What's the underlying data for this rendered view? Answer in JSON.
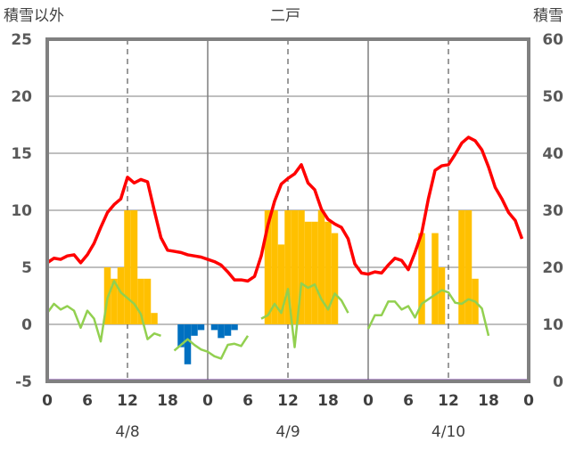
{
  "chart_data": {
    "type": "bar+line",
    "title": "二戸",
    "left_axis_label": "積雪以外",
    "right_axis_label": "積雪",
    "y_left": {
      "min": -5,
      "max": 25,
      "ticks": [
        25,
        20,
        15,
        10,
        5,
        0,
        -5
      ]
    },
    "y_right": {
      "min": 0,
      "max": 60,
      "ticks": [
        60,
        50,
        40,
        30,
        20,
        10,
        0
      ]
    },
    "x_ticks": [
      "0",
      "6",
      "12",
      "18",
      "0",
      "6",
      "12",
      "18",
      "0",
      "6",
      "12",
      "18",
      "0"
    ],
    "dates": [
      "4/8",
      "4/9",
      "4/10"
    ],
    "grid": true,
    "colors": {
      "temperature": "#ff0000",
      "precip_positive": "#ffc000",
      "precip_negative": "#0070c0",
      "third_line": "#92d050",
      "snow_depth": "#7030a0",
      "frame": "#808080"
    },
    "bars": [
      {
        "h": 9,
        "v": 5
      },
      {
        "h": 10,
        "v": 4
      },
      {
        "h": 11,
        "v": 5
      },
      {
        "h": 12,
        "v": 10
      },
      {
        "h": 13,
        "v": 10
      },
      {
        "h": 14,
        "v": 4
      },
      {
        "h": 15,
        "v": 4
      },
      {
        "h": 16,
        "v": 1
      },
      {
        "h": 20,
        "v": -2
      },
      {
        "h": 21,
        "v": -3.5
      },
      {
        "h": 22,
        "v": -1
      },
      {
        "h": 23,
        "v": -0.5
      },
      {
        "h": 25,
        "v": -0.5
      },
      {
        "h": 26,
        "v": -1.2
      },
      {
        "h": 27,
        "v": -1
      },
      {
        "h": 28,
        "v": -0.5
      },
      {
        "h": 33,
        "v": 10
      },
      {
        "h": 34,
        "v": 10
      },
      {
        "h": 35,
        "v": 7
      },
      {
        "h": 36,
        "v": 10
      },
      {
        "h": 37,
        "v": 10
      },
      {
        "h": 38,
        "v": 10
      },
      {
        "h": 39,
        "v": 9
      },
      {
        "h": 40,
        "v": 9
      },
      {
        "h": 41,
        "v": 10
      },
      {
        "h": 42,
        "v": 9
      },
      {
        "h": 43,
        "v": 8
      },
      {
        "h": 56,
        "v": 8
      },
      {
        "h": 58,
        "v": 8
      },
      {
        "h": 59,
        "v": 5
      },
      {
        "h": 62,
        "v": 10
      },
      {
        "h": 63,
        "v": 10
      },
      {
        "h": 64,
        "v": 4
      }
    ],
    "temperature": [
      [
        0,
        5.4
      ],
      [
        1,
        5.8
      ],
      [
        2,
        5.7
      ],
      [
        3,
        6.0
      ],
      [
        4,
        6.1
      ],
      [
        5,
        5.4
      ],
      [
        6,
        6.1
      ],
      [
        7,
        7.1
      ],
      [
        8,
        8.5
      ],
      [
        9,
        9.8
      ],
      [
        10,
        10.5
      ],
      [
        11,
        11.0
      ],
      [
        12,
        12.9
      ],
      [
        13,
        12.4
      ],
      [
        14,
        12.7
      ],
      [
        15,
        12.5
      ],
      [
        16,
        10.0
      ],
      [
        17,
        7.6
      ],
      [
        18,
        6.5
      ],
      [
        19,
        6.4
      ],
      [
        20,
        6.3
      ],
      [
        21,
        6.1
      ],
      [
        22,
        6.0
      ],
      [
        23,
        5.9
      ],
      [
        24,
        5.7
      ],
      [
        25,
        5.5
      ],
      [
        26,
        5.2
      ],
      [
        27,
        4.6
      ],
      [
        28,
        3.9
      ],
      [
        29,
        3.9
      ],
      [
        30,
        3.8
      ],
      [
        31,
        4.2
      ],
      [
        32,
        6.0
      ],
      [
        33,
        8.7
      ],
      [
        34,
        10.8
      ],
      [
        35,
        12.3
      ],
      [
        36,
        12.8
      ],
      [
        37,
        13.2
      ],
      [
        38,
        14.0
      ],
      [
        39,
        12.4
      ],
      [
        40,
        11.8
      ],
      [
        41,
        10.1
      ],
      [
        42,
        9.2
      ],
      [
        43,
        8.8
      ],
      [
        44,
        8.5
      ],
      [
        45,
        7.5
      ],
      [
        46,
        5.3
      ],
      [
        47,
        4.5
      ],
      [
        48,
        4.4
      ],
      [
        49,
        4.6
      ],
      [
        50,
        4.5
      ],
      [
        51,
        5.2
      ],
      [
        52,
        5.8
      ],
      [
        53,
        5.6
      ],
      [
        54,
        4.8
      ],
      [
        55,
        6.3
      ],
      [
        56,
        8.0
      ],
      [
        57,
        11.0
      ],
      [
        58,
        13.5
      ],
      [
        59,
        13.9
      ],
      [
        60,
        14.0
      ],
      [
        61,
        14.9
      ],
      [
        62,
        15.9
      ],
      [
        63,
        16.4
      ],
      [
        64,
        16.1
      ],
      [
        65,
        15.3
      ],
      [
        66,
        13.8
      ],
      [
        67,
        12.0
      ],
      [
        68,
        11.0
      ],
      [
        69,
        9.8
      ],
      [
        70,
        9.1
      ],
      [
        71,
        7.5
      ]
    ],
    "third_series": [
      [
        [
          0,
          1.0
        ],
        [
          1,
          1.8
        ],
        [
          2,
          1.3
        ],
        [
          3,
          1.6
        ],
        [
          4,
          1.2
        ],
        [
          5,
          -0.3
        ],
        [
          6,
          1.2
        ],
        [
          7,
          0.5
        ],
        [
          8,
          -1.5
        ],
        [
          9,
          2.3
        ],
        [
          10,
          3.8
        ],
        [
          11,
          2.8
        ],
        [
          12,
          2.3
        ],
        [
          13,
          1.8
        ],
        [
          14,
          0.9
        ],
        [
          15,
          -1.3
        ],
        [
          16,
          -0.8
        ],
        [
          17,
          -1.0
        ]
      ],
      [
        [
          19,
          -2.3
        ],
        [
          20,
          -1.8
        ],
        [
          21,
          -1.3
        ],
        [
          22,
          -1.8
        ],
        [
          23,
          -2.2
        ],
        [
          24,
          -2.4
        ],
        [
          25,
          -2.8
        ],
        [
          26,
          -3.0
        ],
        [
          27,
          -1.8
        ],
        [
          28,
          -1.7
        ],
        [
          29,
          -1.9
        ],
        [
          30,
          -1.0
        ]
      ],
      [
        [
          32,
          0.5
        ],
        [
          33,
          0.8
        ],
        [
          34,
          1.8
        ],
        [
          35,
          1.0
        ],
        [
          36,
          3.1
        ],
        [
          37,
          -2.0
        ],
        [
          38,
          3.6
        ],
        [
          39,
          3.2
        ],
        [
          40,
          3.5
        ],
        [
          41,
          2.2
        ],
        [
          42,
          1.3
        ],
        [
          43,
          2.7
        ],
        [
          44,
          2.1
        ],
        [
          45,
          1.0
        ]
      ],
      [
        [
          48,
          -0.4
        ],
        [
          49,
          0.8
        ],
        [
          50,
          0.8
        ],
        [
          51,
          2.0
        ],
        [
          52,
          2.0
        ],
        [
          53,
          1.3
        ],
        [
          54,
          1.6
        ],
        [
          55,
          0.6
        ],
        [
          56,
          1.8
        ],
        [
          57,
          2.2
        ],
        [
          58,
          2.6
        ],
        [
          59,
          3.0
        ],
        [
          60,
          2.8
        ],
        [
          61,
          1.9
        ],
        [
          62,
          1.8
        ],
        [
          63,
          2.2
        ],
        [
          64,
          2.0
        ],
        [
          65,
          1.4
        ],
        [
          66,
          -1.0
        ]
      ]
    ],
    "snow_depth": [
      [
        0,
        0
      ],
      [
        72,
        0
      ]
    ]
  }
}
